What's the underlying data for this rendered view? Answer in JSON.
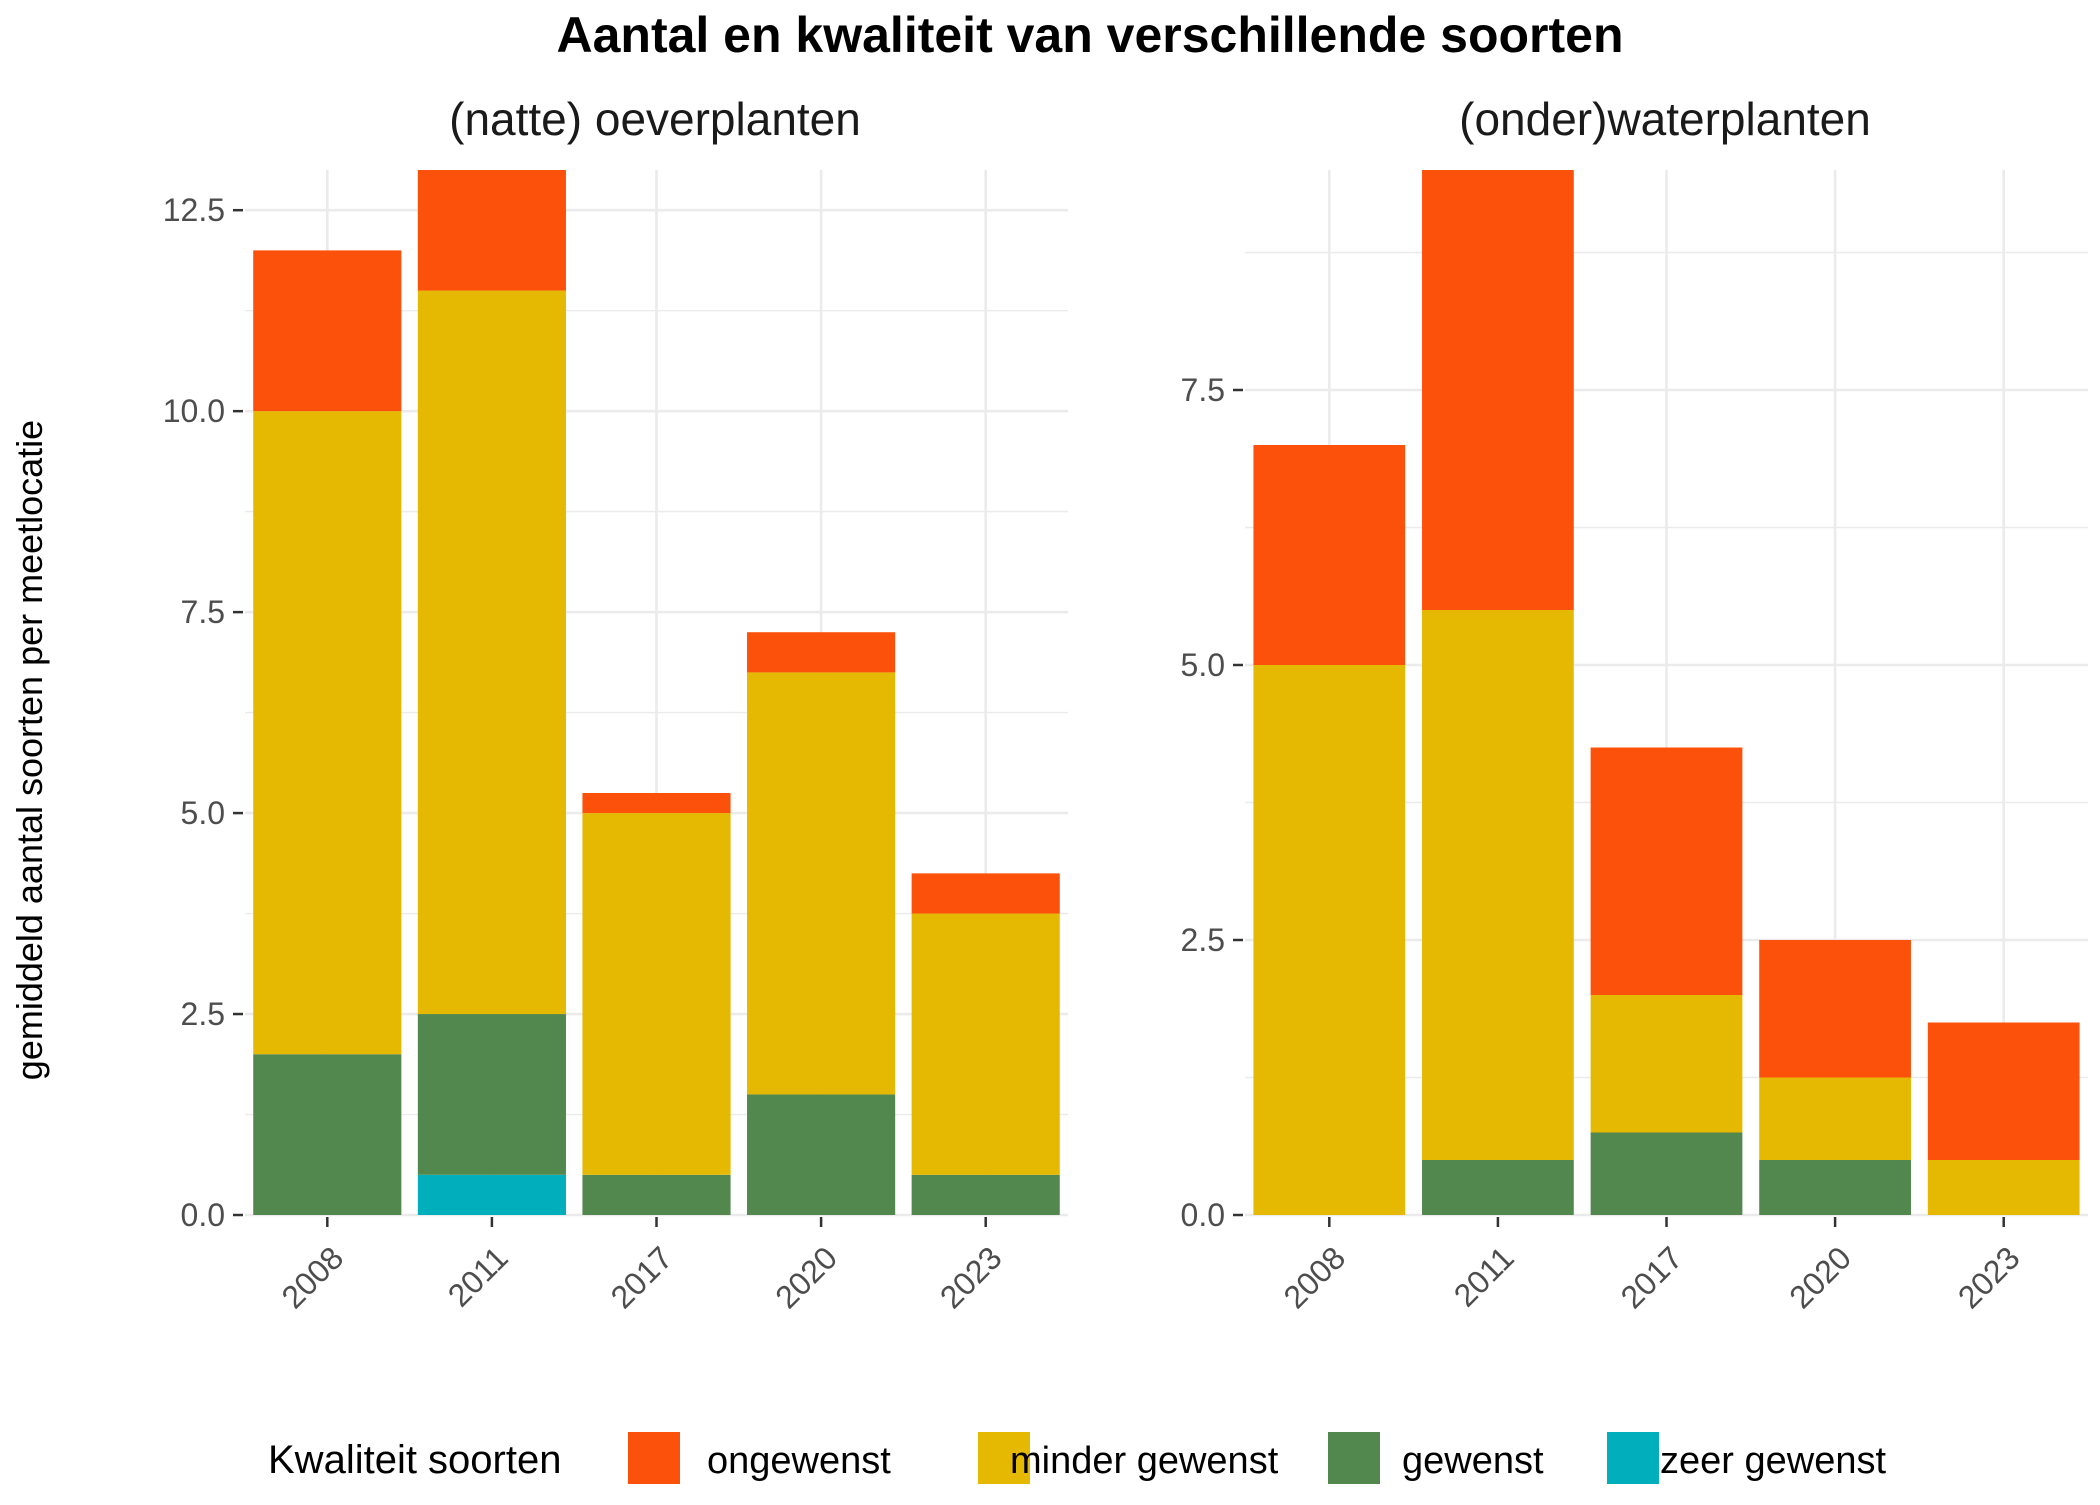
{
  "chart_data": {
    "type": "bar",
    "stacked": true,
    "title": "Aantal en kwaliteit van verschillende soorten",
    "ylabel": "gemiddeld aantal soorten per meetlocatie",
    "grid": true,
    "legend_position": "bottom",
    "legend": {
      "title": "Kwaliteit soorten",
      "entries": [
        {
          "name": "ongewenst",
          "color": "#FC510B"
        },
        {
          "name": "minder gewenst",
          "color": "#E5B901"
        },
        {
          "name": "gewenst",
          "color": "#52874E"
        },
        {
          "name": "zeer gewenst",
          "color": "#00AFBB"
        }
      ]
    },
    "panels": [
      {
        "title": "(natte) oeverplanten",
        "categories": [
          "2008",
          "2011",
          "2017",
          "2020",
          "2023"
        ],
        "ylim": [
          0,
          13
        ],
        "yticks": [
          "0.0",
          "2.5",
          "5.0",
          "7.5",
          "10.0",
          "12.5"
        ],
        "series": [
          {
            "name": "zeer gewenst",
            "values": [
              0,
              0.5,
              0,
              0,
              0
            ]
          },
          {
            "name": "gewenst",
            "values": [
              2,
              2,
              0.5,
              1.5,
              0.5
            ]
          },
          {
            "name": "minder gewenst",
            "values": [
              8,
              9,
              4.5,
              5.25,
              3.25
            ]
          },
          {
            "name": "ongewenst",
            "values": [
              2,
              1.5,
              0.25,
              0.5,
              0.5
            ]
          }
        ]
      },
      {
        "title": "(onder)waterplanten",
        "categories": [
          "2008",
          "2011",
          "2017",
          "2020",
          "2023"
        ],
        "ylim": [
          0,
          9.5
        ],
        "yticks": [
          "0.0",
          "2.5",
          "5.0",
          "7.5"
        ],
        "series": [
          {
            "name": "zeer gewenst",
            "values": [
              0,
              0,
              0,
              0,
              0
            ]
          },
          {
            "name": "gewenst",
            "values": [
              0,
              0.5,
              0.75,
              0.5,
              0
            ]
          },
          {
            "name": "minder gewenst",
            "values": [
              5,
              5,
              1.25,
              0.75,
              0.5
            ]
          },
          {
            "name": "ongewenst",
            "values": [
              2,
              4,
              2.25,
              1.25,
              1.25
            ]
          }
        ]
      }
    ]
  }
}
